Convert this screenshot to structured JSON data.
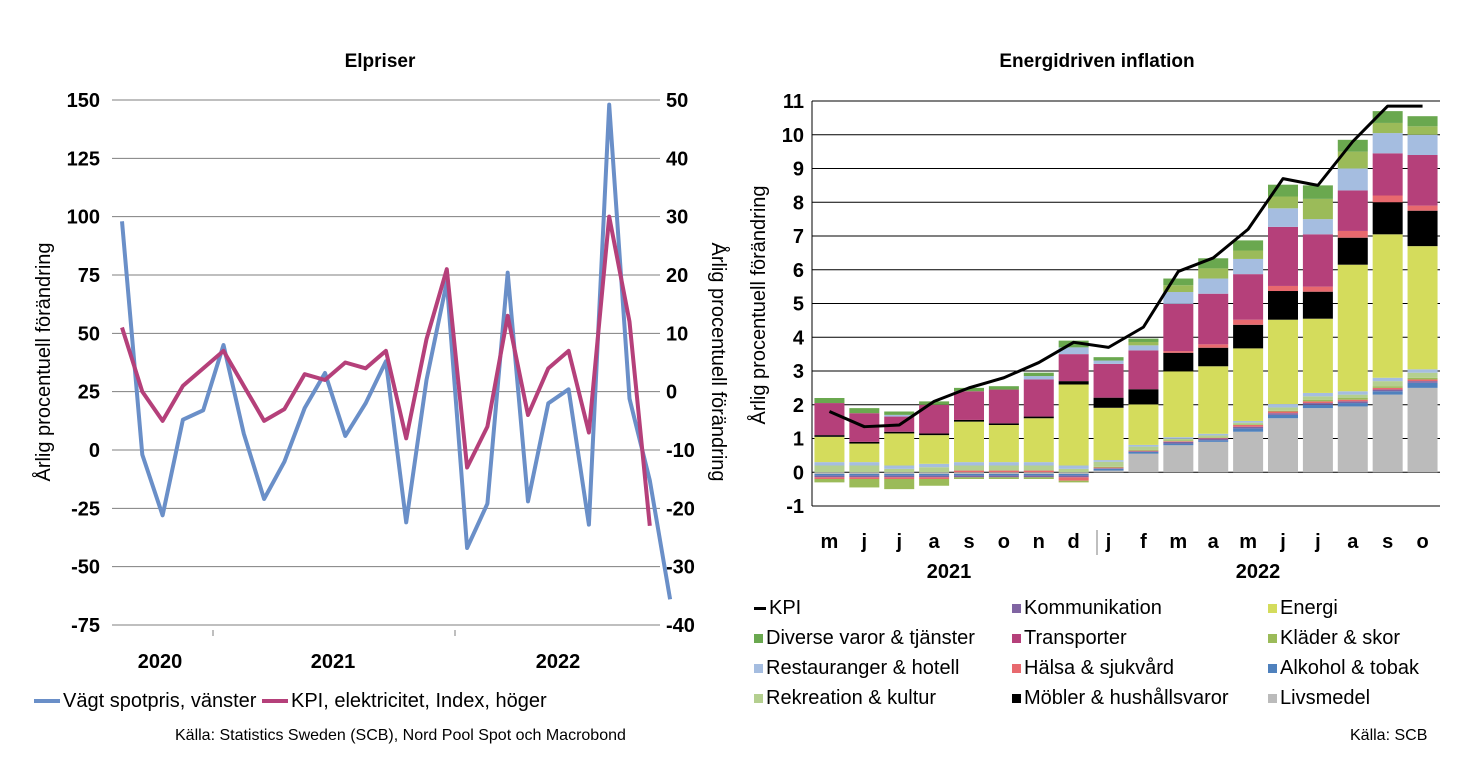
{
  "left": {
    "chart_data": {
      "type": "line",
      "title": "Elpriser",
      "ylabel_left": "Årlig procentuell förändring",
      "ylabel_right": "Årlig procentuell förändring",
      "yticks_left": [
        "150",
        "125",
        "100",
        "75",
        "50",
        "25",
        "0",
        "-25",
        "-50",
        "-75"
      ],
      "yticks_right": [
        "50",
        "40",
        "30",
        "20",
        "10",
        "0",
        "-10",
        "-20",
        "-30",
        "-40"
      ],
      "ylim_left": [
        -75,
        150
      ],
      "ylim_right": [
        -40,
        50
      ],
      "x_start": "2019-12",
      "years": [
        "2020",
        "2021",
        "2022"
      ],
      "grid": true,
      "series": [
        {
          "name": "Vägt spotpris, vänster",
          "axis": "left",
          "color": "#6a8fc8",
          "values": [
            98,
            -2,
            -28,
            13,
            17,
            45,
            7,
            -21,
            -5,
            18,
            33,
            6,
            20,
            38,
            -31,
            30,
            72,
            -42,
            -23,
            76,
            -22,
            20,
            26,
            -32,
            148,
            22,
            -13,
            -64
          ]
        },
        {
          "name": "KPI, elektricitet, Index, höger",
          "axis": "right",
          "color": "#b5407a",
          "values": [
            11,
            0,
            -5,
            1,
            4,
            7,
            1,
            -5,
            -3,
            3,
            2,
            5,
            4,
            7,
            -8,
            9,
            21,
            -13,
            -6,
            13,
            -4,
            4,
            7,
            -7,
            30,
            12,
            -23
          ]
        }
      ],
      "source": "Källa: Statistics Sweden (SCB), Nord Pool Spot och Macrobond"
    }
  },
  "right": {
    "chart_data": {
      "type": "bar",
      "stacked": true,
      "title": "Energidriven inflation",
      "ylabel": "Årlig procentuell förändring",
      "yticks": [
        "11",
        "10",
        "9",
        "8",
        "7",
        "6",
        "5",
        "4",
        "3",
        "2",
        "1",
        "0",
        "-1"
      ],
      "ylim": [
        -1,
        11
      ],
      "categories": [
        "m",
        "j",
        "j",
        "a",
        "s",
        "o",
        "n",
        "d",
        "j",
        "f",
        "m",
        "a",
        "m",
        "j",
        "j",
        "a",
        "s",
        "o"
      ],
      "years": [
        "2021",
        "2022"
      ],
      "series": [
        {
          "name": "Livsmedel",
          "color": "#bbbbbb",
          "values": [
            -0.05,
            -0.05,
            -0.05,
            -0.05,
            -0.05,
            -0.05,
            -0.05,
            -0.05,
            0.05,
            0.55,
            0.8,
            0.9,
            1.2,
            1.6,
            1.9,
            1.95,
            2.3,
            2.5
          ]
        },
        {
          "name": "Alkohol & tobak",
          "color": "#4f81bd",
          "values": [
            -0.05,
            -0.05,
            -0.05,
            -0.05,
            -0.05,
            -0.05,
            -0.05,
            -0.05,
            0.05,
            0.05,
            0.05,
            0.05,
            0.1,
            0.1,
            0.1,
            0.1,
            0.1,
            0.15
          ]
        },
        {
          "name": "Kommunikation",
          "color": "#8064a2",
          "values": [
            -0.05,
            -0.05,
            -0.05,
            -0.05,
            -0.05,
            -0.05,
            -0.05,
            -0.05,
            0.02,
            0.02,
            0.05,
            0.05,
            0.05,
            0.05,
            0.05,
            0.05,
            0.05,
            0.05
          ]
        },
        {
          "name": "Hälsa & sjukvård",
          "color": "#e8696e",
          "values": [
            -0.05,
            -0.05,
            -0.05,
            -0.05,
            0.05,
            0.05,
            0.05,
            -0.1,
            0.02,
            0.02,
            0.02,
            0.02,
            0.05,
            0.05,
            0.05,
            0.05,
            0.05,
            0.05
          ]
        },
        {
          "name": "Kläder & skor",
          "color": "#9bbb59",
          "values": [
            -0.1,
            -0.25,
            -0.3,
            -0.2,
            -0.05,
            -0.05,
            -0.05,
            -0.05,
            0.02,
            0.02,
            0.02,
            0.02,
            0.02,
            0.02,
            0.05,
            0.05,
            0.05,
            0.05
          ]
        },
        {
          "name": "Rekreation & kultur",
          "color": "#b4cf8f",
          "values": [
            0.2,
            0.2,
            0.1,
            0.15,
            0.15,
            0.15,
            0.15,
            0.1,
            0.15,
            0.1,
            0.05,
            0.05,
            0.05,
            0.1,
            0.1,
            0.1,
            0.15,
            0.15
          ]
        },
        {
          "name": "Restauranger & hotell",
          "color": "#a5bde0",
          "values": [
            0.1,
            0.1,
            0.1,
            0.1,
            0.1,
            0.1,
            0.1,
            0.1,
            0.05,
            0.05,
            0.05,
            0.05,
            0.05,
            0.1,
            0.1,
            0.1,
            0.1,
            0.1
          ]
        },
        {
          "name": "Energi",
          "color": "#d4dc5c",
          "values": [
            0.75,
            0.55,
            0.95,
            0.85,
            1.2,
            1.1,
            1.3,
            2.4,
            1.55,
            1.2,
            1.95,
            2.0,
            2.15,
            2.5,
            2.2,
            3.75,
            4.25,
            3.65
          ]
        },
        {
          "name": "Möbler & hushållsvaror",
          "color": "#000000",
          "values": [
            0.05,
            0.05,
            0.05,
            0.05,
            0.05,
            0.05,
            0.05,
            0.1,
            0.3,
            0.45,
            0.55,
            0.55,
            0.7,
            0.85,
            0.8,
            0.8,
            0.95,
            1.05
          ]
        },
        {
          "name": "Hälsa & sjukvård",
          "color": "#e8696e",
          "values": [
            0,
            0,
            0,
            0,
            0,
            0,
            0,
            0,
            0,
            0,
            0.05,
            0.1,
            0.15,
            0.15,
            0.15,
            0.2,
            0.2,
            0.15
          ]
        },
        {
          "name": "Transporter",
          "color": "#b5407a",
          "values": [
            0.95,
            0.85,
            0.45,
            0.85,
            0.85,
            1.0,
            1.1,
            0.8,
            1.0,
            1.15,
            1.4,
            1.5,
            1.35,
            1.75,
            1.55,
            1.2,
            1.25,
            1.5
          ]
        },
        {
          "name": "Restauranger & hotell",
          "color": "#a5bde0",
          "values": [
            0,
            0,
            0.05,
            0,
            0,
            0,
            0.1,
            0.2,
            0.1,
            0.15,
            0.35,
            0.45,
            0.45,
            0.55,
            0.45,
            0.65,
            0.6,
            0.6
          ]
        },
        {
          "name": "Kläder & skor",
          "color": "#9bbb59",
          "values": [
            0,
            0,
            0,
            0,
            0,
            0,
            0,
            0,
            0,
            0.1,
            0.2,
            0.3,
            0.25,
            0.35,
            0.6,
            0.5,
            0.3,
            0.25
          ]
        },
        {
          "name": "Diverse varor & tjänster",
          "color": "#6aa84f",
          "values": [
            0.15,
            0.15,
            0.1,
            0.1,
            0.1,
            0.1,
            0.1,
            0.2,
            0.1,
            0.1,
            0.2,
            0.3,
            0.3,
            0.35,
            0.4,
            0.35,
            0.35,
            0.3
          ]
        }
      ],
      "line": {
        "name": "KPI",
        "color": "#000000",
        "values": [
          1.8,
          1.35,
          1.4,
          2.1,
          2.5,
          2.8,
          3.25,
          3.85,
          3.7,
          4.3,
          5.95,
          6.35,
          7.2,
          8.7,
          8.5,
          9.8,
          10.85,
          10.85
        ]
      },
      "legend": [
        [
          "KPI",
          "Kommunikation",
          "Energi"
        ],
        [
          "Diverse varor & tjänster",
          "Transporter",
          "Kläder & skor"
        ],
        [
          "Restauranger & hotell",
          "Hälsa & sjukvård",
          "Alkohol & tobak"
        ],
        [
          "Rekreation & kultur",
          "Möbler & hushållsvaror",
          "Livsmedel"
        ]
      ],
      "source": "Källa: SCB"
    }
  }
}
